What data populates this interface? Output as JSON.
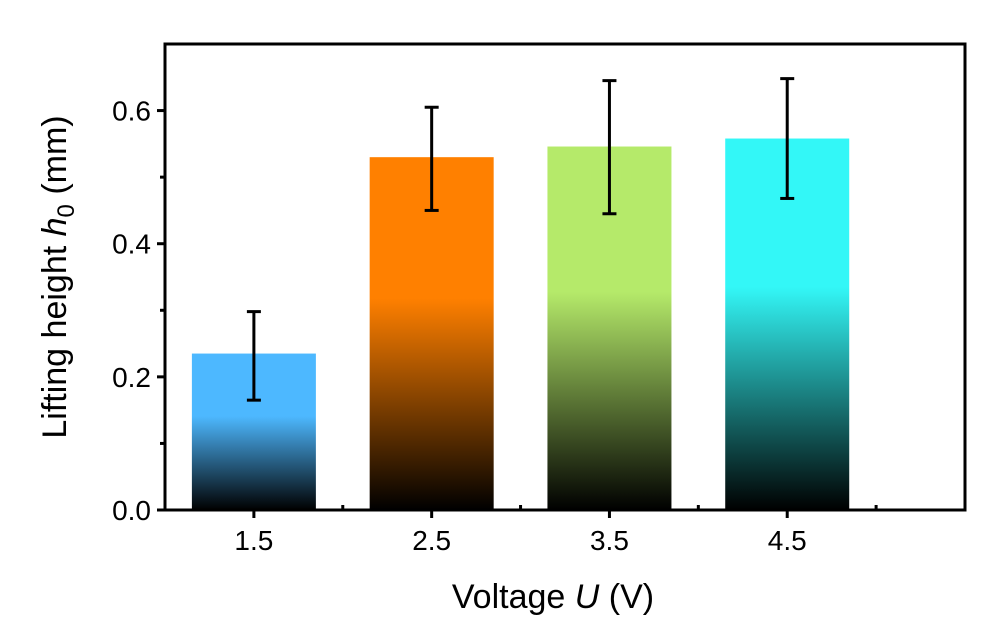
{
  "chart_data": {
    "type": "bar",
    "categories": [
      "1.5",
      "2.5",
      "3.5",
      "4.5"
    ],
    "values": [
      0.235,
      0.53,
      0.546,
      0.558
    ],
    "error_low": [
      0.165,
      0.45,
      0.445,
      0.468
    ],
    "error_high": [
      0.298,
      0.605,
      0.645,
      0.648
    ],
    "bar_colors": [
      "#4db8ff",
      "#ff8000",
      "#b5ea6a",
      "#33f7f7"
    ],
    "xlabel": {
      "prefix": "Voltage ",
      "symbol": "U",
      "suffix": " (V)"
    },
    "ylabel": {
      "prefix": "Lifting height ",
      "symbol": "h",
      "subscript": "0",
      "suffix": " (mm)"
    },
    "ylim": [
      0,
      0.7
    ],
    "yticks": [
      "0.0",
      "0.2",
      "0.4",
      "0.6"
    ],
    "ytick_values": [
      0,
      0.2,
      0.4,
      0.6
    ],
    "xlim": [
      1,
      5.5
    ],
    "grid": false,
    "legend": "none"
  }
}
